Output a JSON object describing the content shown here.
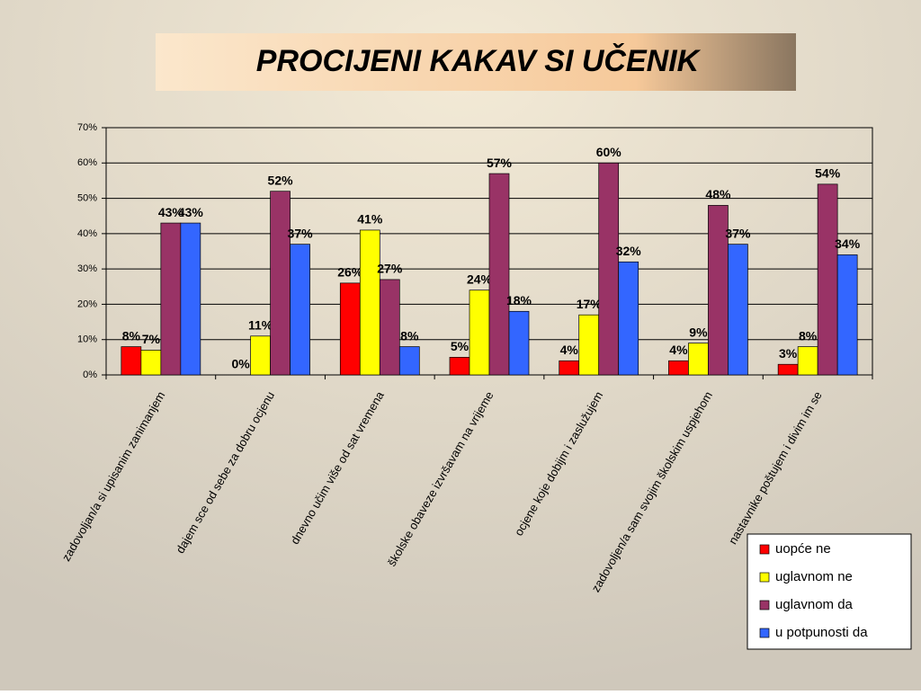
{
  "chart_data": {
    "type": "bar",
    "title": "PROCIJENI KAKAV SI UČENIK",
    "categories": [
      "zadovoljan/a si upisanim zanimanjem",
      "dajem sce od sebe za dobru ocjenu",
      "dnevno učim više od sat vremena",
      "školske obaveze izvršavam na vrijeme",
      "ocjene koje dobijm i zaslužujem",
      "zadovoljen/a sam svojim školskim uspjehom",
      "nastavnike poštujem i divim im se"
    ],
    "series": [
      {
        "name": "uopće ne",
        "color": "#ff0000",
        "values": [
          8,
          0,
          26,
          5,
          4,
          4,
          3
        ],
        "value_labels": [
          "8%",
          "0%",
          "26%",
          "5%",
          "4%",
          "4%",
          "3%"
        ]
      },
      {
        "name": "uglavnom ne",
        "color": "#ffff00",
        "values": [
          7,
          11,
          41,
          24,
          17,
          9,
          8
        ],
        "value_labels": [
          "7%",
          "11%",
          "41%",
          "24%",
          "17%",
          "9%",
          "8%"
        ]
      },
      {
        "name": "uglavnom da",
        "color": "#993366",
        "values": [
          43,
          52,
          27,
          57,
          60,
          48,
          54
        ],
        "value_labels": [
          "43%",
          "52%",
          "27%",
          "57%",
          "60%",
          "48%",
          "54%"
        ]
      },
      {
        "name": "u potpunosti da",
        "color": "#3366ff",
        "values": [
          43,
          37,
          8,
          18,
          32,
          37,
          34
        ],
        "value_labels": [
          "43%",
          "37%",
          "8%",
          "18%",
          "32%",
          "37%",
          "34%"
        ]
      }
    ],
    "ylim": [
      0,
      70
    ],
    "yticks": [
      {
        "value": 0,
        "label": "0%"
      },
      {
        "value": 10,
        "label": "10%"
      },
      {
        "value": 20,
        "label": "20%"
      },
      {
        "value": 30,
        "label": "30%"
      },
      {
        "value": 40,
        "label": "40%"
      },
      {
        "value": 50,
        "label": "50%"
      },
      {
        "value": 60,
        "label": "60%"
      },
      {
        "value": 70,
        "label": "70%"
      }
    ],
    "grid": true,
    "legend": "bottom-right"
  }
}
